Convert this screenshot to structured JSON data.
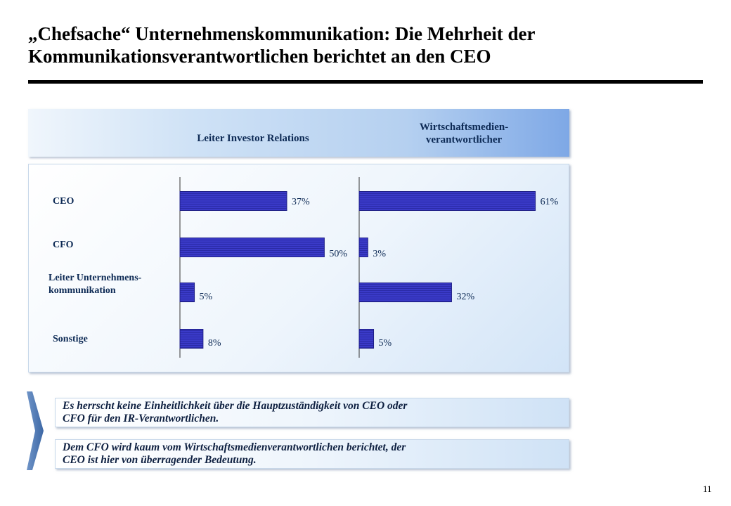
{
  "title": "„Chefsache“ Unternehmenskommunikation: Die Mehrheit der Kommunikationsverantwortlichen berichtet an den CEO",
  "colors": {
    "bar": "#3a3ac8",
    "bar_dark": "#1e1e86",
    "text": "#0d2a55"
  },
  "chart_data": {
    "type": "bar",
    "orientation": "horizontal",
    "categories": [
      "CEO",
      "CFO",
      "Leiter Unternehmens-\nkommunikation",
      "Sonstige"
    ],
    "series": [
      {
        "name": "Leiter Investor Relations",
        "values": [
          37,
          50,
          5,
          8
        ],
        "labels": [
          "37%",
          "50%",
          "5%",
          "8%"
        ]
      },
      {
        "name": "Wirtschaftsmedien-\nverantwortlicher",
        "values": [
          61,
          3,
          32,
          5
        ],
        "labels": [
          "61%",
          "3%",
          "32%",
          "5%"
        ]
      }
    ],
    "unit": "%",
    "xlim": [
      0,
      65
    ],
    "grid": false,
    "legend": "none"
  },
  "notes": [
    "Es herrscht keine Einheitlichkeit über die Hauptzuständigkeit von CEO oder\nCFO für den IR-Verantwortlichen.",
    "Dem CFO wird kaum vom Wirtschaftsmedienverantwortlichen  berichtet, der\nCEO ist hier von überragender Bedeutung."
  ],
  "page_number": "11"
}
